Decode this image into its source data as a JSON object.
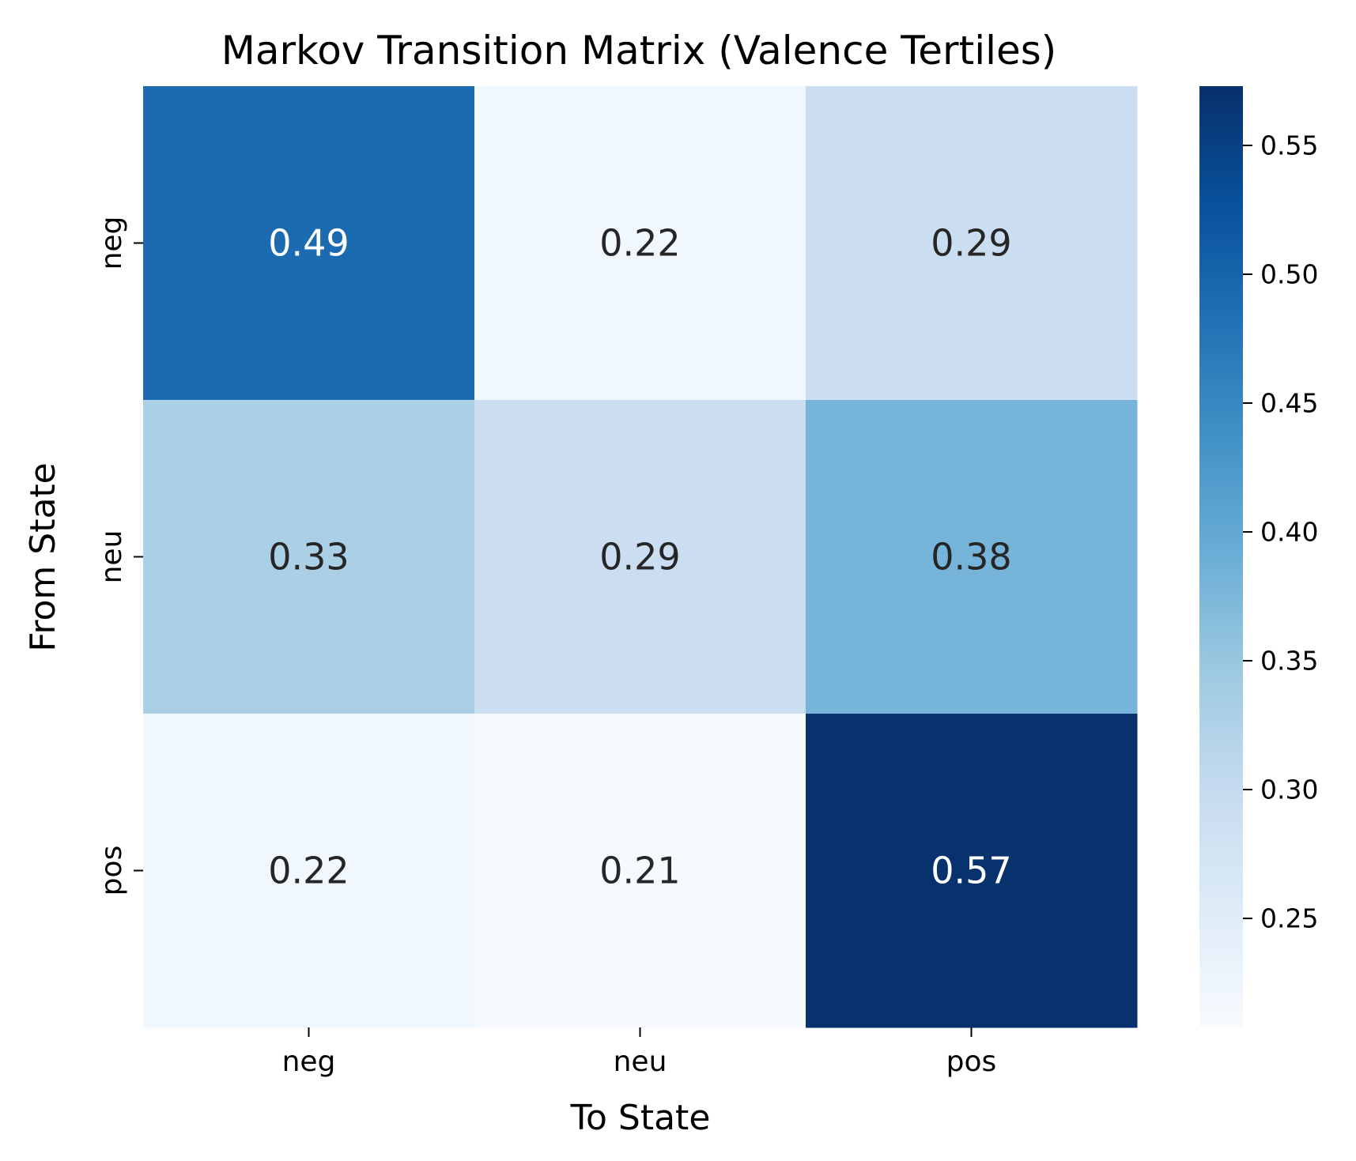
{
  "chart_data": {
    "type": "heatmap",
    "title": "Markov Transition Matrix (Valence Tertiles)",
    "xlabel": "To State",
    "ylabel": "From State",
    "x_categories": [
      "neg",
      "neu",
      "pos"
    ],
    "y_categories": [
      "neg",
      "neu",
      "pos"
    ],
    "values": [
      [
        0.49,
        0.22,
        0.29
      ],
      [
        0.33,
        0.29,
        0.38
      ],
      [
        0.22,
        0.21,
        0.57
      ]
    ],
    "value_labels": [
      [
        "0.49",
        "0.22",
        "0.29"
      ],
      [
        "0.33",
        "0.29",
        "0.38"
      ],
      [
        "0.22",
        "0.21",
        "0.57"
      ]
    ],
    "colormap": "Blues",
    "colorbar": {
      "vmin": 0.208,
      "vmax": 0.573,
      "ticks": [
        0.25,
        0.3,
        0.35,
        0.4,
        0.45,
        0.5,
        0.55
      ],
      "tick_labels": [
        "0.25",
        "0.30",
        "0.35",
        "0.40",
        "0.45",
        "0.50",
        "0.55"
      ]
    }
  }
}
